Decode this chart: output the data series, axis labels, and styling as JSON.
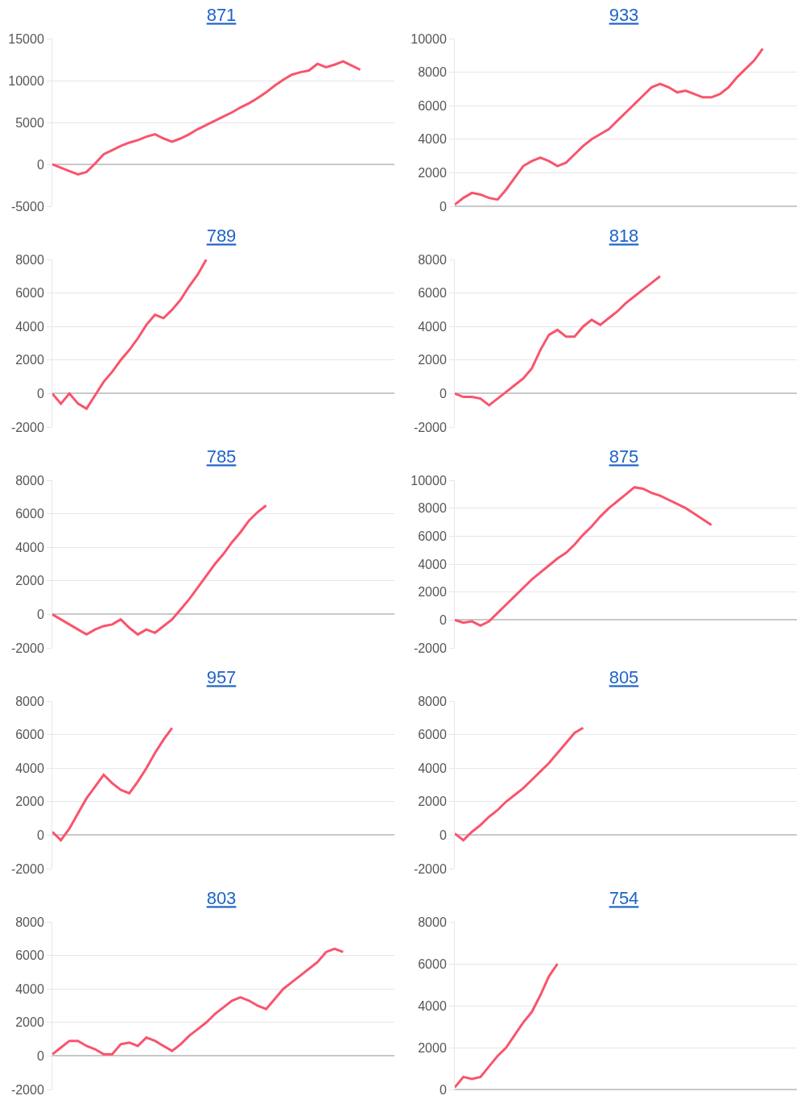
{
  "chart_data": [
    {
      "type": "line",
      "title": "871",
      "color": "#f9546c",
      "categories": [
        null,
        null,
        null,
        null,
        null,
        null,
        null,
        null,
        null,
        null,
        null,
        null,
        null,
        null,
        null,
        null,
        null,
        null,
        null,
        null,
        null,
        null,
        null,
        null,
        null,
        null,
        null,
        null,
        null,
        null,
        null,
        null,
        null,
        null,
        null,
        null,
        null,
        null,
        null,
        null,
        null
      ],
      "values": [
        0,
        -400,
        -800,
        -1200,
        -900,
        100,
        1200,
        1700,
        2200,
        2600,
        2900,
        3300,
        3600,
        3100,
        2700,
        3100,
        3600,
        4200,
        4700,
        5200,
        5700,
        6200,
        6800,
        7300,
        7900,
        8600,
        9400,
        10100,
        10700,
        11000,
        11200,
        12000,
        11600,
        11900,
        12300,
        11800,
        11300,
        null,
        null,
        null,
        null
      ],
      "ylim": [
        -5000,
        15000
      ],
      "yticks": [
        -5000,
        0,
        5000,
        10000,
        15000
      ],
      "grid": "y",
      "tick_labels": "y"
    },
    {
      "type": "line",
      "title": "933",
      "color": "#f9546c",
      "categories": [
        null,
        null,
        null,
        null,
        null,
        null,
        null,
        null,
        null,
        null,
        null,
        null,
        null,
        null,
        null,
        null,
        null,
        null,
        null,
        null,
        null,
        null,
        null,
        null,
        null,
        null,
        null,
        null,
        null,
        null,
        null,
        null,
        null,
        null,
        null,
        null,
        null,
        null,
        null,
        null,
        null
      ],
      "values": [
        100,
        500,
        800,
        700,
        500,
        400,
        1000,
        1700,
        2400,
        2700,
        2900,
        2700,
        2400,
        2600,
        3100,
        3600,
        4000,
        4300,
        4600,
        5100,
        5600,
        6100,
        6600,
        7100,
        7300,
        7100,
        6800,
        6900,
        6700,
        6500,
        6500,
        6700,
        7100,
        7700,
        8200,
        8700,
        9400,
        null,
        null,
        null,
        null
      ],
      "ylim": [
        0,
        10000
      ],
      "yticks": [
        0,
        2000,
        4000,
        6000,
        8000,
        10000
      ],
      "grid": "y",
      "tick_labels": "y"
    },
    {
      "type": "line",
      "title": "789",
      "color": "#f9546c",
      "categories": [
        null,
        null,
        null,
        null,
        null,
        null,
        null,
        null,
        null,
        null,
        null,
        null,
        null,
        null,
        null,
        null,
        null,
        null,
        null,
        null,
        null,
        null,
        null,
        null,
        null,
        null,
        null,
        null,
        null,
        null,
        null,
        null,
        null,
        null,
        null,
        null,
        null,
        null,
        null,
        null,
        null
      ],
      "values": [
        0,
        -600,
        0,
        -600,
        -900,
        -100,
        700,
        1300,
        2000,
        2600,
        3300,
        4100,
        4700,
        4500,
        5000,
        5600,
        6400,
        7100,
        8000,
        null,
        null,
        null,
        null,
        null,
        null,
        null,
        null,
        null,
        null,
        null,
        null,
        null,
        null,
        null,
        null,
        null,
        null,
        null,
        null,
        null,
        null
      ],
      "ylim": [
        -2000,
        8000
      ],
      "yticks": [
        -2000,
        0,
        2000,
        4000,
        6000,
        8000
      ],
      "grid": "y",
      "tick_labels": "y"
    },
    {
      "type": "line",
      "title": "818",
      "color": "#f9546c",
      "categories": [
        null,
        null,
        null,
        null,
        null,
        null,
        null,
        null,
        null,
        null,
        null,
        null,
        null,
        null,
        null,
        null,
        null,
        null,
        null,
        null,
        null,
        null,
        null,
        null,
        null,
        null,
        null,
        null,
        null,
        null,
        null,
        null,
        null,
        null,
        null,
        null,
        null,
        null,
        null,
        null,
        null
      ],
      "values": [
        0,
        -200,
        -200,
        -300,
        -700,
        -300,
        100,
        500,
        900,
        1500,
        2600,
        3500,
        3800,
        3400,
        3400,
        4000,
        4400,
        4100,
        4500,
        4900,
        5400,
        5800,
        6200,
        6600,
        7000,
        null,
        null,
        null,
        null,
        null,
        null,
        null,
        null,
        null,
        null,
        null,
        null,
        null,
        null,
        null,
        null
      ],
      "ylim": [
        -2000,
        8000
      ],
      "yticks": [
        -2000,
        0,
        2000,
        4000,
        6000,
        8000
      ],
      "grid": "y",
      "tick_labels": "y"
    },
    {
      "type": "line",
      "title": "785",
      "color": "#f9546c",
      "categories": [
        null,
        null,
        null,
        null,
        null,
        null,
        null,
        null,
        null,
        null,
        null,
        null,
        null,
        null,
        null,
        null,
        null,
        null,
        null,
        null,
        null,
        null,
        null,
        null,
        null,
        null,
        null,
        null,
        null,
        null,
        null,
        null,
        null,
        null,
        null,
        null,
        null,
        null,
        null,
        null,
        null
      ],
      "values": [
        0,
        -300,
        -600,
        -900,
        -1200,
        -900,
        -700,
        -600,
        -300,
        -800,
        -1200,
        -900,
        -1100,
        -700,
        -300,
        300,
        900,
        1600,
        2300,
        3000,
        3600,
        4300,
        4900,
        5600,
        6100,
        6500,
        null,
        null,
        null,
        null,
        null,
        null,
        null,
        null,
        null,
        null,
        null,
        null,
        null,
        null,
        null
      ],
      "ylim": [
        -2000,
        8000
      ],
      "yticks": [
        -2000,
        0,
        2000,
        4000,
        6000,
        8000
      ],
      "grid": "y",
      "tick_labels": "y"
    },
    {
      "type": "line",
      "title": "875",
      "color": "#f9546c",
      "categories": [
        null,
        null,
        null,
        null,
        null,
        null,
        null,
        null,
        null,
        null,
        null,
        null,
        null,
        null,
        null,
        null,
        null,
        null,
        null,
        null,
        null,
        null,
        null,
        null,
        null,
        null,
        null,
        null,
        null,
        null,
        null,
        null,
        null,
        null,
        null,
        null,
        null,
        null,
        null,
        null,
        null
      ],
      "values": [
        0,
        -200,
        -100,
        -400,
        -100,
        500,
        1100,
        1700,
        2300,
        2900,
        3400,
        3900,
        4400,
        4800,
        5400,
        6100,
        6700,
        7400,
        8000,
        8500,
        9000,
        9500,
        9400,
        9100,
        8900,
        8600,
        8300,
        8000,
        7600,
        7200,
        6800,
        null,
        null,
        null,
        null,
        null,
        null,
        null,
        null,
        null,
        null
      ],
      "ylim": [
        -2000,
        10000
      ],
      "yticks": [
        -2000,
        0,
        2000,
        4000,
        6000,
        8000,
        10000
      ],
      "grid": "y",
      "tick_labels": "y"
    },
    {
      "type": "line",
      "title": "957",
      "color": "#f9546c",
      "categories": [
        null,
        null,
        null,
        null,
        null,
        null,
        null,
        null,
        null,
        null,
        null,
        null,
        null,
        null,
        null,
        null,
        null,
        null,
        null,
        null,
        null,
        null,
        null,
        null,
        null,
        null,
        null,
        null,
        null,
        null,
        null,
        null,
        null,
        null,
        null,
        null,
        null,
        null,
        null,
        null,
        null
      ],
      "values": [
        200,
        -300,
        400,
        1300,
        2200,
        2900,
        3600,
        3100,
        2700,
        2500,
        3200,
        4000,
        4900,
        5700,
        6400,
        null,
        null,
        null,
        null,
        null,
        null,
        null,
        null,
        null,
        null,
        null,
        null,
        null,
        null,
        null,
        null,
        null,
        null,
        null,
        null,
        null,
        null,
        null,
        null,
        null,
        null
      ],
      "ylim": [
        -2000,
        8000
      ],
      "yticks": [
        -2000,
        0,
        2000,
        4000,
        6000,
        8000
      ],
      "grid": "y",
      "tick_labels": "y"
    },
    {
      "type": "line",
      "title": "805",
      "color": "#f9546c",
      "categories": [
        null,
        null,
        null,
        null,
        null,
        null,
        null,
        null,
        null,
        null,
        null,
        null,
        null,
        null,
        null,
        null,
        null,
        null,
        null,
        null,
        null,
        null,
        null,
        null,
        null,
        null,
        null,
        null,
        null,
        null,
        null,
        null,
        null,
        null,
        null,
        null,
        null,
        null,
        null,
        null,
        null
      ],
      "values": [
        100,
        -300,
        200,
        600,
        1100,
        1500,
        2000,
        2400,
        2800,
        3300,
        3800,
        4300,
        4900,
        5500,
        6100,
        6400,
        null,
        null,
        null,
        null,
        null,
        null,
        null,
        null,
        null,
        null,
        null,
        null,
        null,
        null,
        null,
        null,
        null,
        null,
        null,
        null,
        null,
        null,
        null,
        null,
        null
      ],
      "ylim": [
        -2000,
        8000
      ],
      "yticks": [
        -2000,
        0,
        2000,
        4000,
        6000,
        8000
      ],
      "grid": "y",
      "tick_labels": "y"
    },
    {
      "type": "line",
      "title": "803",
      "color": "#f9546c",
      "categories": [
        null,
        null,
        null,
        null,
        null,
        null,
        null,
        null,
        null,
        null,
        null,
        null,
        null,
        null,
        null,
        null,
        null,
        null,
        null,
        null,
        null,
        null,
        null,
        null,
        null,
        null,
        null,
        null,
        null,
        null,
        null,
        null,
        null,
        null,
        null,
        null,
        null,
        null,
        null,
        null,
        null
      ],
      "values": [
        100,
        500,
        900,
        900,
        600,
        400,
        100,
        100,
        700,
        800,
        600,
        1100,
        900,
        600,
        300,
        700,
        1200,
        1600,
        2000,
        2500,
        2900,
        3300,
        3500,
        3300,
        3000,
        2800,
        3400,
        4000,
        4400,
        4800,
        5200,
        5600,
        6200,
        6400,
        6200,
        null,
        null,
        null,
        null,
        null,
        null
      ],
      "ylim": [
        -2000,
        8000
      ],
      "yticks": [
        -2000,
        0,
        2000,
        4000,
        6000,
        8000
      ],
      "grid": "y",
      "tick_labels": "y"
    },
    {
      "type": "line",
      "title": "754",
      "color": "#f9546c",
      "categories": [
        null,
        null,
        null,
        null,
        null,
        null,
        null,
        null,
        null,
        null,
        null,
        null,
        null,
        null,
        null,
        null,
        null,
        null,
        null,
        null,
        null,
        null,
        null,
        null,
        null,
        null,
        null,
        null,
        null,
        null,
        null,
        null,
        null,
        null,
        null,
        null,
        null,
        null,
        null,
        null,
        null
      ],
      "values": [
        100,
        600,
        500,
        600,
        1100,
        1600,
        2000,
        2600,
        3200,
        3700,
        4500,
        5400,
        6000,
        null,
        null,
        null,
        null,
        null,
        null,
        null,
        null,
        null,
        null,
        null,
        null,
        null,
        null,
        null,
        null,
        null,
        null,
        null,
        null,
        null,
        null,
        null,
        null,
        null,
        null,
        null,
        null
      ],
      "ylim": [
        0,
        8000
      ],
      "yticks": [
        0,
        2000,
        4000,
        6000,
        8000
      ],
      "grid": "y",
      "tick_labels": "y"
    }
  ]
}
